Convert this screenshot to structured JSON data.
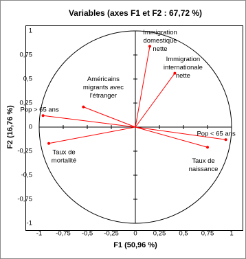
{
  "chart_data": {
    "type": "scatter",
    "title": "Variables (axes F1 et F2 : 67,72 %)",
    "x_label": "F1 (50,96 %)",
    "y_label": "F2 (16,76 %)",
    "color": "#ff0000",
    "circle": true,
    "points": [
      {
        "label": [
          "Immigration",
          "domestique",
          "nette"
        ],
        "x": 0.15,
        "y": 0.84
      },
      {
        "label": [
          "Immigration",
          "internationale",
          "nette"
        ],
        "x": 0.41,
        "y": 0.56
      },
      {
        "label": [
          "Américains",
          "migrants avec",
          "l'étranger"
        ],
        "x": -0.54,
        "y": 0.21
      },
      {
        "label": [
          "Pop > 65 ans"
        ],
        "x": -0.96,
        "y": 0.12
      },
      {
        "label": [
          "Taux de",
          "mortalité"
        ],
        "x": -0.9,
        "y": -0.17
      },
      {
        "label": [
          "Pop < 65 ans"
        ],
        "x": 0.94,
        "y": -0.13
      },
      {
        "label": [
          "Taux de",
          "naissance"
        ],
        "x": 0.75,
        "y": -0.21
      }
    ],
    "xlim": [
      -1,
      1
    ],
    "ylim": [
      -1,
      1
    ],
    "xticks": [
      {
        "value": -1,
        "label": "-1"
      },
      {
        "value": -0.75,
        "label": "-0,75"
      },
      {
        "value": -0.5,
        "label": "-0,5"
      },
      {
        "value": -0.25,
        "label": "-0,25"
      },
      0,
      {
        "value": 0.25,
        "label": "0,25"
      },
      {
        "value": 0.5,
        "label": "0,5"
      },
      {
        "value": 0.75,
        "label": "0,75"
      },
      1
    ],
    "yticks": [
      {
        "value": -1,
        "label": "-1"
      },
      {
        "value": -0.75,
        "label": "-0,75"
      },
      {
        "value": -0.5,
        "label": "-0,5"
      },
      {
        "value": -0.25,
        "label": "-0,25"
      },
      0,
      {
        "value": 0.25,
        "label": "0,25"
      },
      {
        "value": 0.5,
        "label": "0,5"
      },
      {
        "value": 0.75,
        "label": "0,75"
      },
      1
    ]
  }
}
